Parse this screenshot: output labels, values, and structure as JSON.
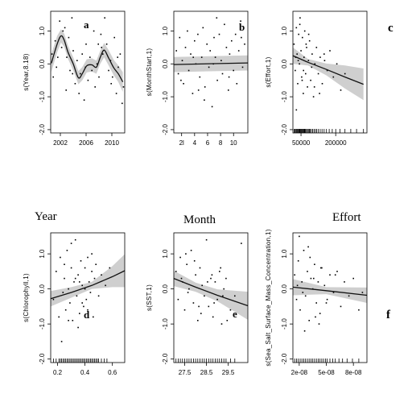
{
  "colors": {
    "band": "#cfcfcf",
    "line": "#111111",
    "points": "#000000",
    "frame": "#000000",
    "background": "#ffffff"
  },
  "chart_data": [
    {
      "type": "line",
      "panel_letter": "a",
      "ylabel": "s(Year,8.18)",
      "xlim": [
        2000.5,
        2012
      ],
      "ylim": [
        -2.1,
        1.6
      ],
      "xticks": [
        2002,
        2006,
        2010
      ],
      "xticklabels": [
        "2002",
        "2006",
        "2010"
      ],
      "yticks": [
        -2.0,
        -1.0,
        0.0,
        1.0
      ],
      "yticklabels": [
        "-2.0",
        "-1.0",
        "0.0",
        "1.0"
      ],
      "rug": false,
      "series": [
        {
          "x": [
            2000.6,
            2001.5,
            2002.1,
            2002.6,
            2003.2,
            2004.0,
            2004.8,
            2005.4,
            2006.1,
            2006.9,
            2007.6,
            2008.2,
            2008.8,
            2009.5,
            2010.3,
            2011.0,
            2011.7
          ],
          "y": [
            0.02,
            0.6,
            0.85,
            0.72,
            0.35,
            0.0,
            -0.42,
            -0.3,
            -0.06,
            -0.03,
            -0.1,
            0.2,
            0.42,
            0.18,
            -0.12,
            -0.3,
            -0.55
          ],
          "lower": [
            -0.25,
            0.35,
            0.65,
            0.52,
            0.15,
            -0.2,
            -0.62,
            -0.5,
            -0.26,
            -0.23,
            -0.3,
            0.0,
            0.2,
            -0.05,
            -0.35,
            -0.55,
            -0.85
          ],
          "upper": [
            0.3,
            0.85,
            1.05,
            0.92,
            0.55,
            0.2,
            -0.22,
            -0.1,
            0.14,
            0.17,
            0.1,
            0.4,
            0.64,
            0.42,
            0.12,
            -0.05,
            -0.25
          ]
        }
      ],
      "points": {
        "x": [
          2000.7,
          2000.9,
          2001.2,
          2001.6,
          2001.9,
          2002.2,
          2002.4,
          2002.7,
          2003.0,
          2003.3,
          2003.5,
          2003.8,
          2004.0,
          2004.3,
          2004.6,
          2004.9,
          2005.1,
          2005.4,
          2005.7,
          2006.0,
          2006.3,
          2006.6,
          2006.9,
          2007.2,
          2007.4,
          2007.7,
          2008.0,
          2008.3,
          2008.6,
          2008.9,
          2009.2,
          2009.5,
          2009.8,
          2010.1,
          2010.4,
          2010.7,
          2011.0,
          2011.3,
          2011.6,
          2011.8,
          2002.9,
          2005.9,
          2008.4,
          2010.9,
          2003.9,
          2007.9,
          2001.4,
          2009.9
        ],
        "y": [
          0.3,
          -0.4,
          0.7,
          0.2,
          1.3,
          0.5,
          1.0,
          1.1,
          0.2,
          0.8,
          -0.2,
          1.4,
          0.4,
          -0.6,
          0.1,
          -0.9,
          -0.3,
          0.3,
          -1.1,
          0.6,
          -0.5,
          0.2,
          -0.2,
          1.0,
          -0.7,
          0.0,
          -0.4,
          0.9,
          0.3,
          1.4,
          0.6,
          -0.2,
          0.1,
          -0.4,
          0.8,
          -0.9,
          -0.1,
          0.3,
          -1.2,
          -0.7,
          -0.8,
          -0.1,
          0.5,
          0.2,
          -0.3,
          0.6,
          -0.1,
          -0.6
        ]
      }
    },
    {
      "type": "line",
      "panel_letter": "b",
      "ylabel": "s(MonthStart,1)",
      "xlim": [
        0.8,
        12.2
      ],
      "ylim": [
        -2.1,
        1.6
      ],
      "xticks": [
        2,
        4,
        6,
        8,
        10
      ],
      "xticklabels": [
        "2l",
        "4",
        "6",
        "8",
        "10"
      ],
      "yticks": [
        -2.0,
        -1.0,
        0.0,
        1.0
      ],
      "yticklabels": [
        "-2.0",
        "-1.0",
        "0.0",
        "1.0"
      ],
      "rug": false,
      "series": [
        {
          "x": [
            0.8,
            12.2
          ],
          "y": [
            -0.02,
            0.03
          ],
          "lower": [
            -0.25,
            -0.2
          ],
          "upper": [
            0.21,
            0.26
          ]
        }
      ],
      "points": {
        "x": [
          1.2,
          1.5,
          1.7,
          2.1,
          2.3,
          2.6,
          2.9,
          3.1,
          3.4,
          3.7,
          4.0,
          4.2,
          4.5,
          4.8,
          5.1,
          5.3,
          5.6,
          5.9,
          6.2,
          6.4,
          6.7,
          7.0,
          7.2,
          7.5,
          7.8,
          8.1,
          8.3,
          8.6,
          8.9,
          9.2,
          9.4,
          9.7,
          10.0,
          10.3,
          10.5,
          10.8,
          11.1,
          11.4,
          11.7,
          1.9,
          3.8,
          5.5,
          7.4,
          9.3,
          11.2,
          6.9,
          4.6
        ],
        "y": [
          0.4,
          -0.3,
          0.8,
          0.1,
          -0.6,
          0.5,
          1.0,
          -0.2,
          0.3,
          -0.9,
          0.7,
          0.0,
          0.9,
          -0.4,
          0.2,
          1.1,
          -0.7,
          0.6,
          -0.1,
          0.4,
          -1.3,
          0.8,
          0.2,
          -0.5,
          0.9,
          0.1,
          -0.3,
          1.2,
          0.5,
          -0.8,
          0.3,
          0.7,
          -0.2,
          0.9,
          -0.6,
          0.4,
          1.3,
          -0.1,
          0.6,
          -0.5,
          0.2,
          -1.1,
          1.4,
          -0.4,
          0.8,
          0.0,
          -0.8
        ]
      }
    },
    {
      "type": "line",
      "panel_letter": "c",
      "ylabel": "s(Effort,1)",
      "xlim": [
        15000,
        335000
      ],
      "ylim": [
        -2.1,
        1.6
      ],
      "xticks": [
        50000,
        200000
      ],
      "xticklabels": [
        "50000",
        "200000"
      ],
      "yticks": [
        -2.0,
        -1.0,
        0.0,
        1.0
      ],
      "yticklabels": [
        "-2.0",
        "-1.0",
        "0.0",
        "1.0"
      ],
      "rug": true,
      "rug_x": [
        20000,
        24000,
        28000,
        31000,
        34000,
        37000,
        40000,
        43000,
        46000,
        49000,
        52000,
        55000,
        58000,
        61000,
        64000,
        67000,
        70000,
        74000,
        78000,
        82000,
        86000,
        90000,
        95000,
        100000,
        106000,
        112000,
        118000,
        125000,
        133000,
        141000,
        150000,
        160000,
        172000,
        185000,
        200000,
        218000,
        240000,
        265000,
        290000,
        320000
      ],
      "series": [
        {
          "x": [
            15000,
            80000,
            160000,
            240000,
            320000
          ],
          "y": [
            0.25,
            0.05,
            -0.17,
            -0.4,
            -0.62
          ],
          "lower": [
            0.0,
            -0.05,
            -0.35,
            -0.75,
            -1.1
          ],
          "upper": [
            0.5,
            0.15,
            0.01,
            -0.05,
            -0.14
          ]
        }
      ],
      "points": {
        "x": [
          20000,
          25000,
          30000,
          33000,
          36000,
          40000,
          43000,
          46000,
          50000,
          53000,
          56000,
          60000,
          63000,
          66000,
          70000,
          74000,
          78000,
          82000,
          87000,
          92000,
          98000,
          104000,
          110000,
          117000,
          125000,
          133000,
          142000,
          152000,
          163000,
          175000,
          190000,
          205000,
          222000,
          240000,
          30000,
          45000,
          61000,
          83000,
          108000,
          150000,
          38000,
          55000,
          72000,
          96000,
          130000,
          27000
        ],
        "y": [
          0.6,
          -0.2,
          1.1,
          0.3,
          -0.6,
          0.9,
          0.0,
          1.4,
          0.4,
          -0.4,
          0.8,
          -0.9,
          0.2,
          1.0,
          -0.3,
          0.5,
          -0.7,
          0.1,
          0.7,
          -0.5,
          0.3,
          -1.0,
          0.0,
          0.5,
          -0.3,
          0.2,
          -0.6,
          0.1,
          -0.2,
          0.4,
          -0.4,
          0.0,
          -0.8,
          -0.3,
          -1.4,
          1.2,
          -0.2,
          0.9,
          -0.7,
          0.3,
          0.1,
          -0.5,
          0.6,
          -0.1,
          -0.9,
          0.2
        ]
      }
    },
    {
      "type": "line",
      "panel_letter": "d",
      "ylabel": "s(Chlorophyll,1)",
      "xlim": [
        0.15,
        0.69
      ],
      "ylim": [
        -2.1,
        1.6
      ],
      "xticks": [
        0.2,
        0.4,
        0.6
      ],
      "xticklabels": [
        "0.2",
        "0.4",
        "0.6"
      ],
      "yticks": [
        -2.0,
        -1.0,
        0.0,
        1.0
      ],
      "yticklabels": [
        "-2.0",
        "-1.0",
        "0.0",
        "1.0"
      ],
      "rug": true,
      "rug_x": [
        0.17,
        0.19,
        0.21,
        0.22,
        0.23,
        0.24,
        0.25,
        0.26,
        0.27,
        0.28,
        0.29,
        0.3,
        0.31,
        0.32,
        0.33,
        0.34,
        0.35,
        0.36,
        0.37,
        0.38,
        0.39,
        0.4,
        0.41,
        0.42,
        0.43,
        0.44,
        0.45,
        0.46,
        0.47,
        0.48,
        0.49,
        0.5,
        0.52,
        0.54,
        0.56
      ],
      "series": [
        {
          "x": [
            0.15,
            0.3,
            0.45,
            0.6,
            0.69
          ],
          "y": [
            -0.28,
            -0.1,
            0.1,
            0.35,
            0.52
          ],
          "lower": [
            -0.5,
            -0.25,
            0.0,
            0.05,
            0.05
          ],
          "upper": [
            -0.06,
            0.05,
            0.2,
            0.65,
            0.99
          ]
        }
      ],
      "points": {
        "x": [
          0.17,
          0.19,
          0.21,
          0.22,
          0.24,
          0.25,
          0.26,
          0.27,
          0.28,
          0.29,
          0.3,
          0.31,
          0.32,
          0.33,
          0.34,
          0.35,
          0.36,
          0.37,
          0.38,
          0.39,
          0.4,
          0.41,
          0.42,
          0.43,
          0.44,
          0.45,
          0.46,
          0.47,
          0.48,
          0.5,
          0.52,
          0.55,
          0.58,
          0.23,
          0.3,
          0.35,
          0.4,
          0.45,
          0.28,
          0.33,
          0.38,
          0.25,
          0.42,
          0.36
        ],
        "y": [
          -0.3,
          0.5,
          -0.8,
          0.9,
          -0.1,
          0.3,
          -0.6,
          1.1,
          0.0,
          -0.4,
          0.6,
          -0.9,
          0.2,
          1.4,
          -0.2,
          0.4,
          -0.7,
          0.8,
          0.1,
          -0.5,
          0.6,
          -0.3,
          0.9,
          0.2,
          -0.1,
          0.5,
          -0.8,
          0.3,
          0.7,
          -0.2,
          0.4,
          0.1,
          0.6,
          -1.5,
          1.3,
          -1.1,
          0.0,
          1.0,
          -0.9,
          0.3,
          -0.4,
          0.7,
          -0.6,
          0.2
        ]
      }
    },
    {
      "type": "line",
      "panel_letter": "e",
      "ylabel": "s(SST,1)",
      "xlim": [
        27.0,
        30.4
      ],
      "ylim": [
        -2.1,
        1.6
      ],
      "xticks": [
        27.5,
        28.5,
        29.5
      ],
      "xticklabels": [
        "27.5",
        "28.5",
        "29.5"
      ],
      "yticks": [
        -2.0,
        -1.0,
        0.0,
        1.0
      ],
      "yticklabels": [
        "-2.0",
        "-1.0",
        "0.0",
        "1.0"
      ],
      "rug": true,
      "rug_x": [
        27.1,
        27.2,
        27.3,
        27.4,
        27.5,
        27.6,
        27.7,
        27.8,
        27.9,
        28.0,
        28.1,
        28.2,
        28.3,
        28.4,
        28.5,
        28.6,
        28.7,
        28.8,
        28.9,
        29.0,
        29.1,
        29.2,
        29.3,
        29.4,
        29.6,
        29.8
      ],
      "series": [
        {
          "x": [
            27.0,
            28.0,
            29.0,
            30.4
          ],
          "y": [
            0.3,
            0.05,
            -0.18,
            -0.48
          ],
          "lower": [
            0.08,
            -0.08,
            -0.35,
            -0.88
          ],
          "upper": [
            0.52,
            0.18,
            -0.01,
            -0.08
          ]
        }
      ],
      "points": {
        "x": [
          27.1,
          27.2,
          27.3,
          27.4,
          27.5,
          27.6,
          27.7,
          27.8,
          27.9,
          28.0,
          28.1,
          28.2,
          28.3,
          28.4,
          28.5,
          28.6,
          28.7,
          28.8,
          28.9,
          29.0,
          29.1,
          29.2,
          29.3,
          29.4,
          29.6,
          29.8,
          27.35,
          27.65,
          27.95,
          28.25,
          28.55,
          28.85,
          29.15,
          29.45,
          27.55,
          28.15,
          28.75,
          29.25,
          30.1
        ],
        "y": [
          0.5,
          -0.3,
          0.9,
          0.2,
          -0.6,
          0.7,
          0.0,
          1.1,
          -0.4,
          0.4,
          -0.9,
          0.6,
          0.1,
          -0.2,
          1.4,
          -0.5,
          0.3,
          -0.8,
          0.2,
          -0.3,
          0.5,
          -1.0,
          0.0,
          0.3,
          -0.6,
          -0.2,
          0.3,
          -0.1,
          0.8,
          -0.7,
          0.2,
          -0.4,
          0.6,
          -0.9,
          1.0,
          -0.5,
          0.4,
          -0.2,
          1.3
        ]
      }
    },
    {
      "type": "line",
      "panel_letter": "f",
      "ylabel": "s(Sea_Salt_Surface_Mass_Concentration,1)",
      "xlim": [
        1.3e-08,
        9.5e-08
      ],
      "ylim": [
        -2.1,
        1.6
      ],
      "xticks": [
        2e-08,
        5e-08,
        8e-08
      ],
      "xticklabels": [
        "2e-08",
        "5e-08",
        "8e-08"
      ],
      "yticks": [
        -2.0,
        -1.0,
        0.0,
        1.0
      ],
      "yticklabels": [
        "-2.0",
        "-1.0",
        "0.0",
        "1.0"
      ],
      "rug": true,
      "rug_x": [
        1.5e-08,
        1.7e-08,
        1.9e-08,
        2.1e-08,
        2.3e-08,
        2.5e-08,
        2.7e-08,
        2.9e-08,
        3.1e-08,
        3.3e-08,
        3.5e-08,
        3.7e-08,
        3.9e-08,
        4.1e-08,
        4.3e-08,
        4.5e-08,
        4.7e-08,
        4.9e-08,
        5.1e-08,
        5.4e-08,
        5.7e-08,
        6e-08,
        6.4e-08,
        6.8e-08,
        7.3e-08,
        7.9e-08,
        8.6e-08
      ],
      "series": [
        {
          "x": [
            1.3e-08,
            5e-08,
            9.5e-08
          ],
          "y": [
            0.05,
            -0.05,
            -0.18
          ],
          "lower": [
            -0.18,
            -0.15,
            -0.4
          ],
          "upper": [
            0.28,
            0.05,
            0.04
          ]
        }
      ],
      "points": {
        "x": [
          1.5e-08,
          1.7e-08,
          1.9e-08,
          2.1e-08,
          2.3e-08,
          2.5e-08,
          2.7e-08,
          2.9e-08,
          3.1e-08,
          3.3e-08,
          3.5e-08,
          3.7e-08,
          3.9e-08,
          4.1e-08,
          4.3e-08,
          4.5e-08,
          4.8e-08,
          5.1e-08,
          5.4e-08,
          5.8e-08,
          6.2e-08,
          6.6e-08,
          7e-08,
          7.5e-08,
          8e-08,
          8.6e-08,
          2e-08,
          2.6e-08,
          3.2e-08,
          3.8e-08,
          4.4e-08,
          5e-08,
          1.8e-08,
          2.4e-08,
          3e-08,
          3.6e-08,
          4.2e-08,
          9e-08,
          6e-08
        ],
        "y": [
          0.4,
          -0.3,
          0.8,
          -0.6,
          0.2,
          1.1,
          -0.2,
          0.5,
          -0.9,
          0.3,
          0.0,
          0.7,
          -0.4,
          0.2,
          -0.7,
          0.6,
          0.1,
          -0.3,
          0.4,
          -0.1,
          0.5,
          -0.5,
          0.2,
          -0.2,
          0.3,
          -0.6,
          1.5,
          -1.2,
          0.9,
          -0.8,
          0.6,
          -0.4,
          0.1,
          -0.1,
          1.2,
          0.3,
          -1.0,
          -0.1,
          0.4
        ]
      }
    }
  ],
  "labels": {
    "side_letter_c": "c",
    "side_letter_f": "f",
    "caption_year": "Year",
    "caption_month": "Month",
    "caption_effort": "Effort"
  }
}
